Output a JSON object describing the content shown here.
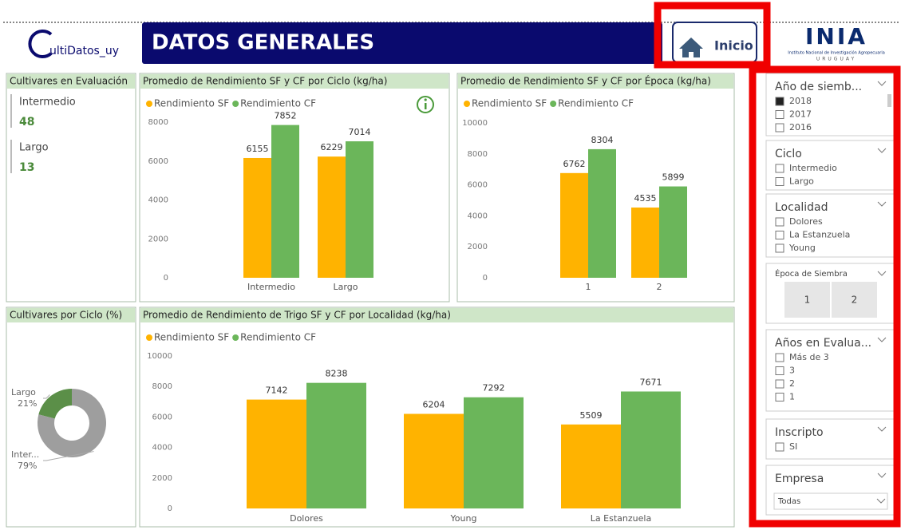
{
  "header": {
    "logo": "ultiDatos_uy",
    "title": "DATOS GENERALES",
    "home_button": "Inicio",
    "inia_logo": "INIA",
    "inia_name": "Instituto Nacional de Investigación Agropecuaria",
    "inia_country": "URUGUAY"
  },
  "cultivares_evaluacion": {
    "title": "Cultivares en Evaluación",
    "items": [
      {
        "label": "Intermedio",
        "value": 48
      },
      {
        "label": "Largo",
        "value": 13
      }
    ]
  },
  "chart_data": [
    {
      "type": "bar",
      "title": "Promedio de Rendimiento SF y CF por Ciclo (kg/ha)",
      "categories": [
        "Intermedio",
        "Largo"
      ],
      "series": [
        {
          "name": "Rendimiento SF",
          "color": "#FFB300",
          "values": [
            6155,
            6229
          ]
        },
        {
          "name": "Rendimiento CF",
          "color": "#6BB65A",
          "values": [
            7852,
            7014
          ]
        }
      ],
      "ylim": [
        0,
        8000
      ],
      "yticks": [
        0,
        2000,
        4000,
        6000,
        8000
      ]
    },
    {
      "type": "bar",
      "title": "Promedio de Rendimiento SF y CF por Época (kg/ha)",
      "categories": [
        "1",
        "2"
      ],
      "series": [
        {
          "name": "Rendimiento SF",
          "color": "#FFB300",
          "values": [
            6762,
            4535
          ]
        },
        {
          "name": "Rendimiento CF",
          "color": "#6BB65A",
          "values": [
            8304,
            5899
          ]
        }
      ],
      "ylim": [
        0,
        10000
      ],
      "yticks": [
        0,
        2000,
        4000,
        6000,
        8000,
        10000
      ]
    },
    {
      "type": "bar",
      "title": "Promedio de Rendimiento de Trigo SF y CF por Localidad (kg/ha)",
      "categories": [
        "Dolores",
        "Young",
        "La Estanzuela"
      ],
      "series": [
        {
          "name": "Rendimiento SF",
          "color": "#FFB300",
          "values": [
            7142,
            6204,
            5509
          ]
        },
        {
          "name": "Rendimiento CF",
          "color": "#6BB65A",
          "values": [
            8238,
            7292,
            7671
          ]
        }
      ],
      "ylim": [
        0,
        10000
      ],
      "yticks": [
        0,
        2000,
        4000,
        6000,
        8000,
        10000
      ]
    },
    {
      "type": "pie",
      "title": "Cultivares por Ciclo (%)",
      "categories": [
        "Largo",
        "Inter..."
      ],
      "values": [
        21,
        79
      ],
      "value_labels": [
        "21%",
        "79%"
      ],
      "colors": [
        "#5B8F48",
        "#9E9E9E"
      ]
    }
  ],
  "slicers": [
    {
      "title": "Año de siemb...",
      "items": [
        "2018",
        "2017",
        "2016"
      ],
      "checked": [
        true,
        false,
        false
      ]
    },
    {
      "title": "Ciclo",
      "items": [
        "Intermedio",
        "Largo"
      ]
    },
    {
      "title": "Localidad",
      "items": [
        "Dolores",
        "La Estanzuela",
        "Young"
      ]
    },
    {
      "title": "Época de Siembra",
      "buttons": [
        "1",
        "2"
      ]
    },
    {
      "title": "Años en Evalua...",
      "items": [
        "Más de 3",
        "3",
        "2",
        "1"
      ]
    },
    {
      "title": "Inscripto",
      "items": [
        "SI"
      ]
    },
    {
      "title": "Empresa",
      "dropdown": "Todas"
    }
  ]
}
